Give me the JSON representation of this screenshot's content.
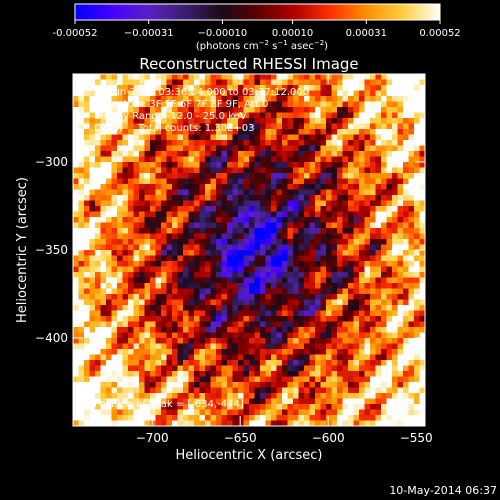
{
  "chart_data": {
    "type": "heatmap",
    "title": "Reconstructed RHESSI Image",
    "xlabel": "Heliocentric X (arcsec)",
    "ylabel": "Heliocentric Y (arcsec)",
    "xlim": [
      -745,
      -545
    ],
    "ylim": [
      -450,
      -250
    ],
    "x_ticks": [
      -700,
      -650,
      -600,
      -550
    ],
    "y_ticks": [
      -300,
      -350,
      -400
    ],
    "colorbar": {
      "min": -0.00052,
      "max": 0.00052,
      "tick_values": [
        -0.00052,
        -0.00031,
        -0.0001,
        0.0001,
        0.00031,
        0.00052
      ],
      "tick_labels": [
        "-0.00052",
        "−0.00031",
        "−0.00010",
        "0.00010",
        "0.00031",
        "0.00052"
      ],
      "unit_text": "(photons cm",
      "unit_exp1": "−2",
      "unit_mid": " s",
      "unit_exp2": "−1",
      "unit_end": " asec",
      "unit_exp3": "−2",
      "unit_close": ")",
      "palette": [
        "#0000ff",
        "#4400ff",
        "#5a1fc8",
        "#3a2070",
        "#1a0a1a",
        "#5a0000",
        "#b00000",
        "#ff3000",
        "#ff9000",
        "#ffd040",
        "#ffffff"
      ]
    },
    "annotations": [
      "1-Jun-2012 03:36:04.000 to 03:37:12.000",
      "Detectors: 3F 5F 6F 7F 8F 9F, Att 0",
      "Energy Range: 12.0 - 25.0 keV",
      "Clean     Total counts: 1.30E+03",
      "Position of Peak = [-634,-444]"
    ],
    "peak": {
      "x": -634,
      "y": -444
    },
    "timestamp": "10-May-2014 06:37"
  }
}
